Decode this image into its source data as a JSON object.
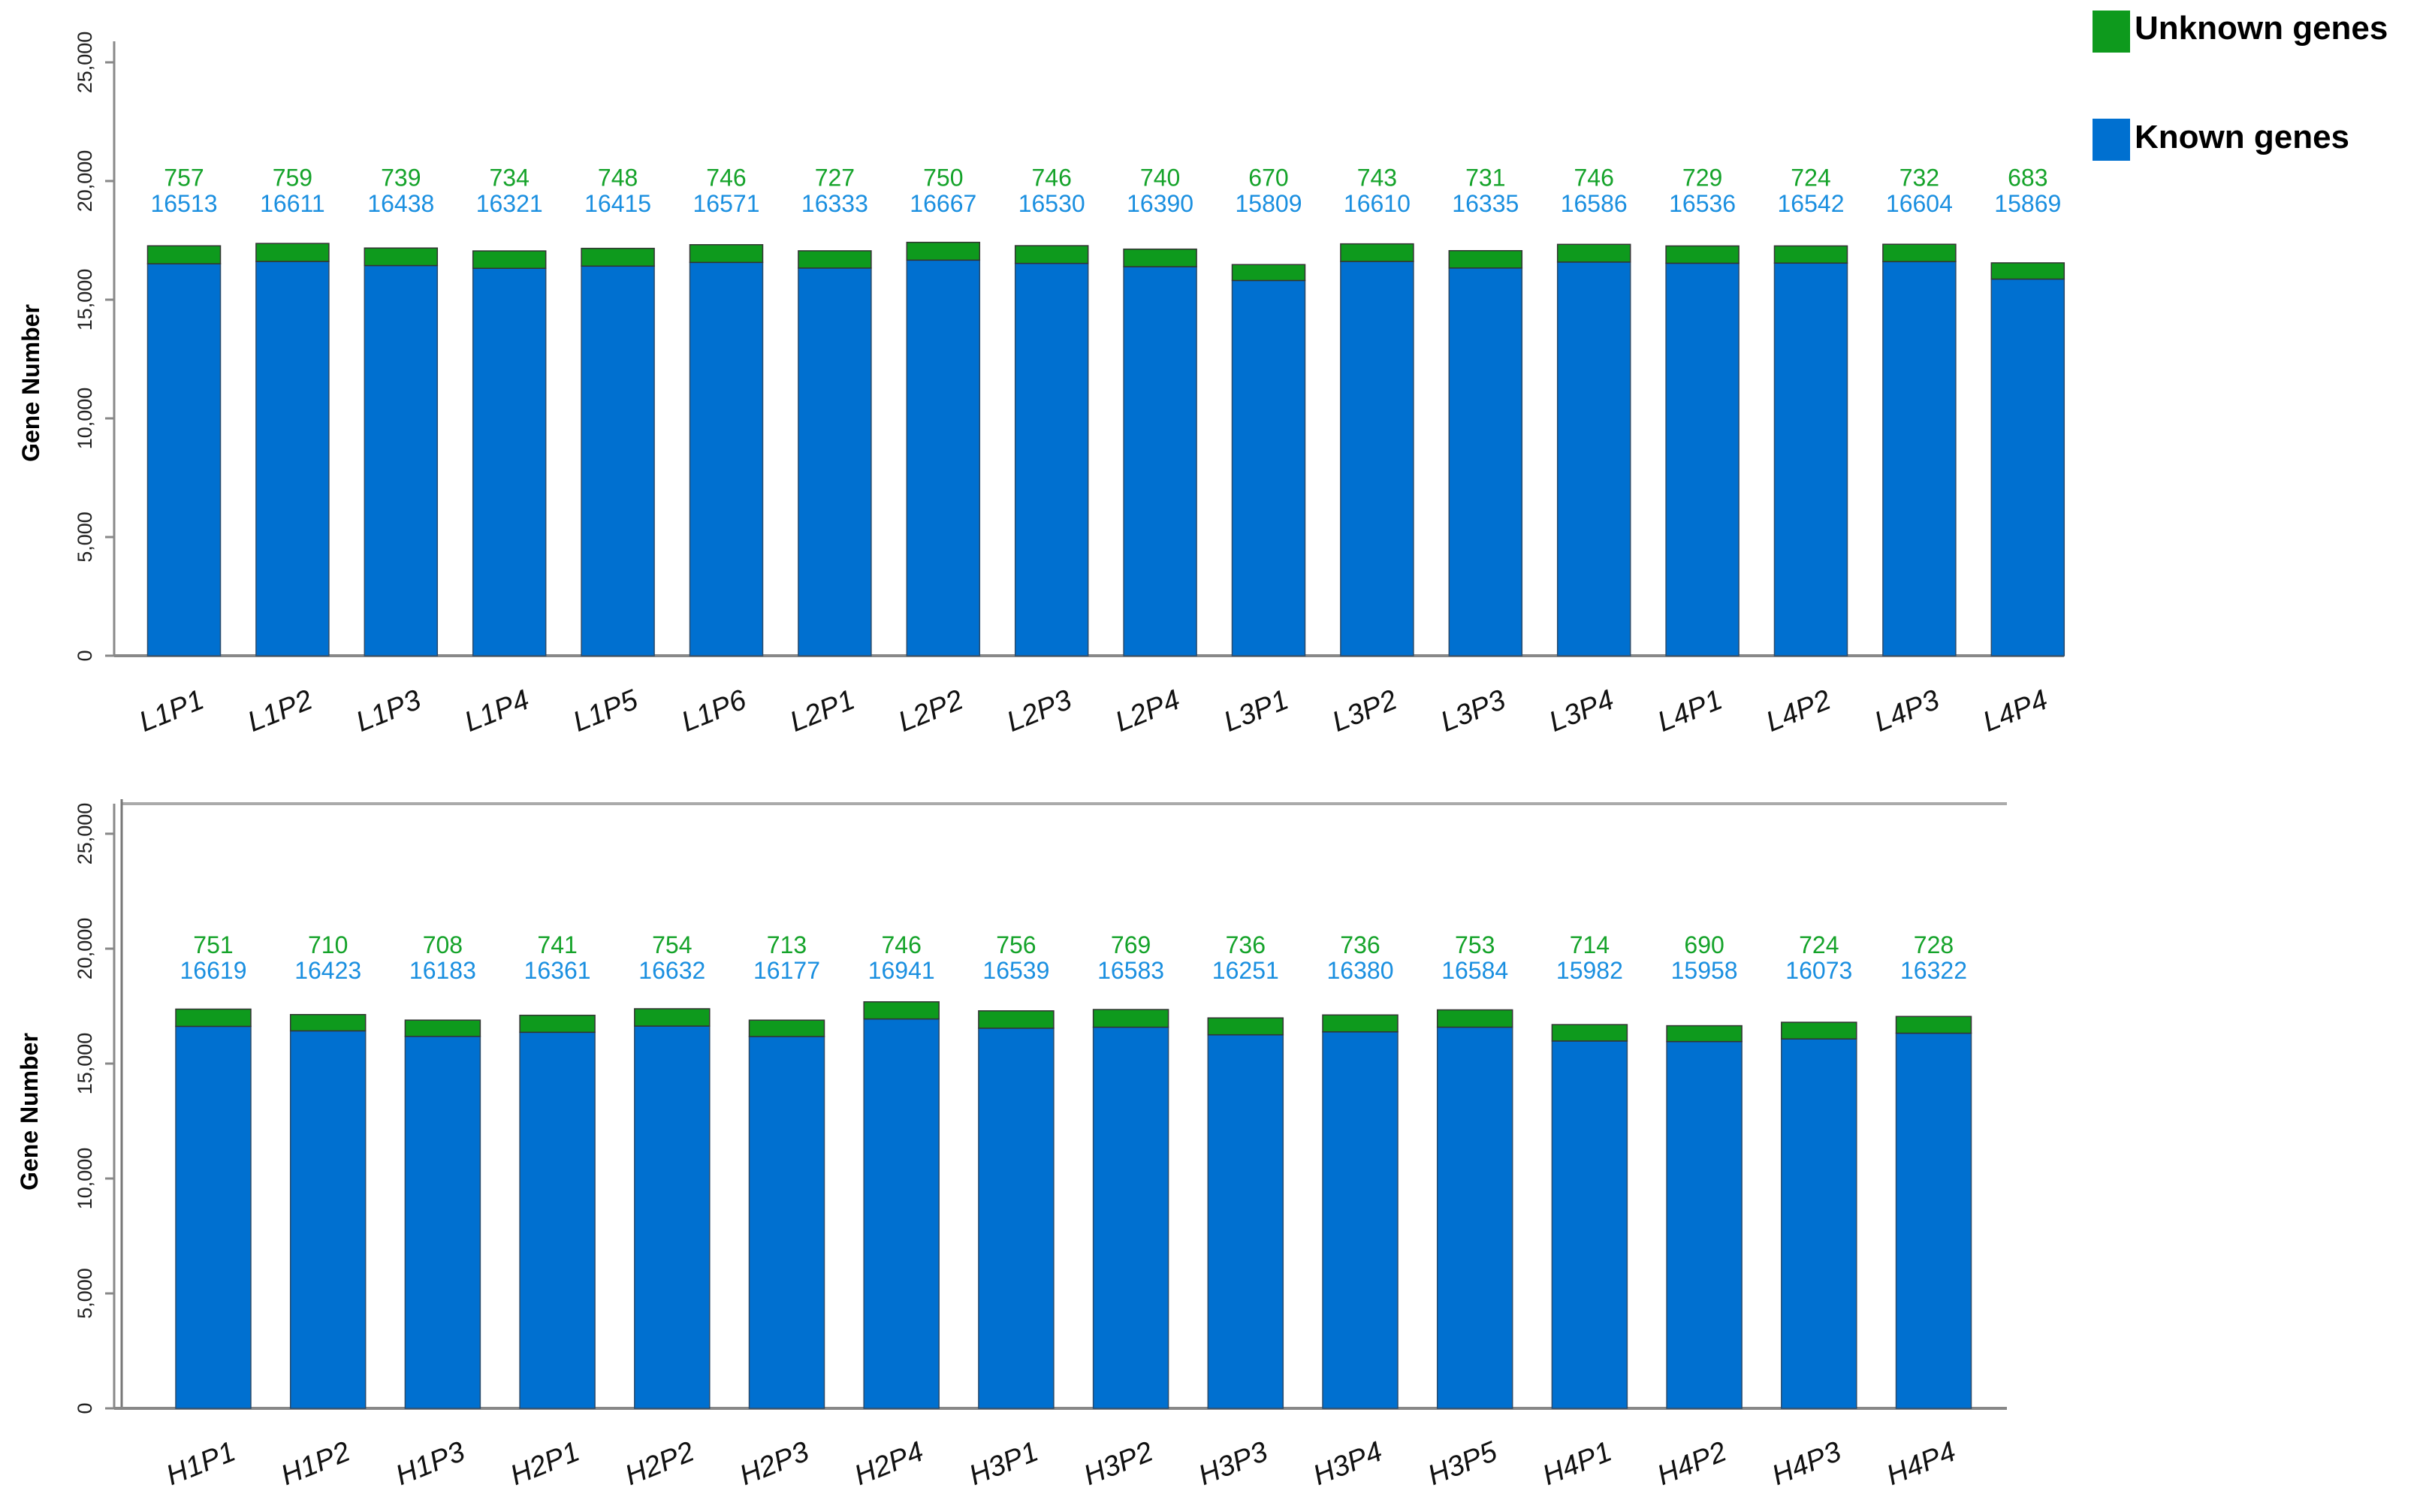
{
  "colors": {
    "known": "#0070d0",
    "unknown": "#0e9a1d",
    "known_label": "#1a8fe0",
    "unknown_label": "#15a32a",
    "axis": "#888888"
  },
  "legend": {
    "unknown": "Unknown genes",
    "known": "Known genes",
    "placement": "top-right"
  },
  "chart_data": [
    {
      "type": "bar",
      "stacked": true,
      "ylabel": "Gene Number",
      "xlabel": "",
      "ylim": [
        0,
        25000
      ],
      "yticks": [
        "0",
        "5,000",
        "10,000",
        "15,000",
        "20,000",
        "25,000"
      ],
      "categories": [
        "L1P1",
        "L1P2",
        "L1P3",
        "L1P4",
        "L1P5",
        "L1P6",
        "L2P1",
        "L2P2",
        "L2P3",
        "L2P4",
        "L3P1",
        "L3P2",
        "L3P3",
        "L3P4",
        "L4P1",
        "L4P2",
        "L4P3",
        "L4P4"
      ],
      "series": [
        {
          "name": "Known genes",
          "values": [
            16513,
            16611,
            16438,
            16321,
            16415,
            16571,
            16333,
            16667,
            16530,
            16390,
            15809,
            16610,
            16335,
            16586,
            16536,
            16542,
            16604,
            15869
          ]
        },
        {
          "name": "Unknown genes",
          "values": [
            757,
            759,
            739,
            734,
            748,
            746,
            727,
            750,
            746,
            740,
            670,
            743,
            731,
            746,
            729,
            724,
            732,
            683
          ]
        }
      ]
    },
    {
      "type": "bar",
      "stacked": true,
      "ylabel": "Gene Number",
      "xlabel": "",
      "ylim": [
        0,
        25000
      ],
      "yticks": [
        "0",
        "5,000",
        "10,000",
        "15,000",
        "20,000",
        "25,000"
      ],
      "categories": [
        "H1P1",
        "H1P2",
        "H1P3",
        "H2P1",
        "H2P2",
        "H2P3",
        "H2P4",
        "H3P1",
        "H3P2",
        "H3P3",
        "H3P4",
        "H3P5",
        "H4P1",
        "H4P2",
        "H4P3",
        "H4P4"
      ],
      "series": [
        {
          "name": "Known genes",
          "values": [
            16619,
            16423,
            16183,
            16361,
            16632,
            16177,
            16941,
            16539,
            16583,
            16251,
            16380,
            16584,
            15982,
            15958,
            16073,
            16322
          ]
        },
        {
          "name": "Unknown genes",
          "values": [
            751,
            710,
            708,
            741,
            754,
            713,
            746,
            756,
            769,
            736,
            736,
            753,
            714,
            690,
            724,
            728
          ]
        }
      ]
    }
  ]
}
